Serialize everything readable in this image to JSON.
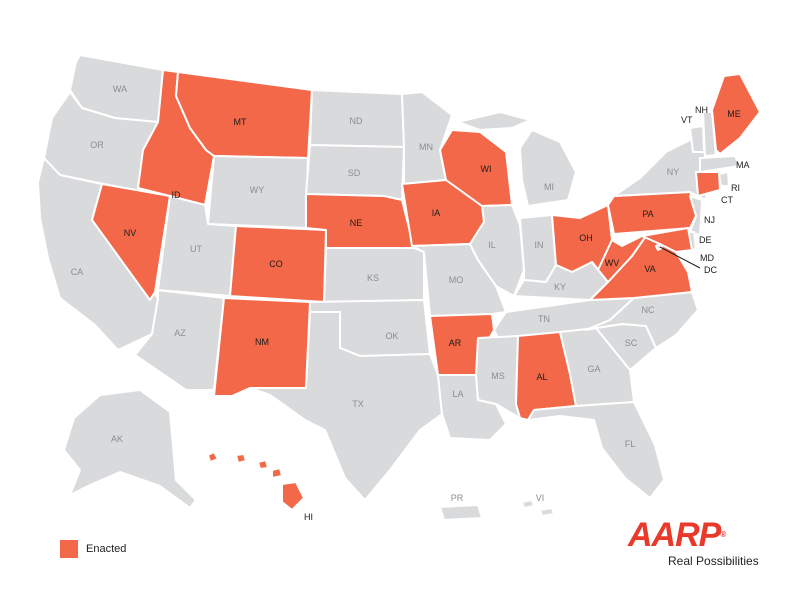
{
  "colors": {
    "enacted": "#f26849",
    "other": "#d9dadc",
    "border": "#ffffff",
    "label_other": "#8a8d91",
    "label_enacted": "#1d1d1d"
  },
  "legend": {
    "enacted_label": "Enacted"
  },
  "brand": {
    "logo": "AARP",
    "registered": "®",
    "tagline": "Real Possibilities"
  },
  "states": [
    {
      "code": "WA",
      "enacted": false
    },
    {
      "code": "OR",
      "enacted": false
    },
    {
      "code": "CA",
      "enacted": false
    },
    {
      "code": "NV",
      "enacted": true
    },
    {
      "code": "ID",
      "enacted": true
    },
    {
      "code": "MT",
      "enacted": true
    },
    {
      "code": "WY",
      "enacted": false
    },
    {
      "code": "UT",
      "enacted": false
    },
    {
      "code": "AZ",
      "enacted": false
    },
    {
      "code": "CO",
      "enacted": true
    },
    {
      "code": "NM",
      "enacted": true
    },
    {
      "code": "ND",
      "enacted": false
    },
    {
      "code": "SD",
      "enacted": false
    },
    {
      "code": "NE",
      "enacted": true
    },
    {
      "code": "KS",
      "enacted": false
    },
    {
      "code": "OK",
      "enacted": false
    },
    {
      "code": "TX",
      "enacted": false
    },
    {
      "code": "MN",
      "enacted": false
    },
    {
      "code": "IA",
      "enacted": true
    },
    {
      "code": "MO",
      "enacted": false
    },
    {
      "code": "AR",
      "enacted": true
    },
    {
      "code": "LA",
      "enacted": false
    },
    {
      "code": "WI",
      "enacted": true
    },
    {
      "code": "IL",
      "enacted": false
    },
    {
      "code": "MI",
      "enacted": false
    },
    {
      "code": "IN",
      "enacted": false
    },
    {
      "code": "OH",
      "enacted": true
    },
    {
      "code": "KY",
      "enacted": false
    },
    {
      "code": "TN",
      "enacted": false
    },
    {
      "code": "MS",
      "enacted": false
    },
    {
      "code": "AL",
      "enacted": true
    },
    {
      "code": "GA",
      "enacted": false
    },
    {
      "code": "FL",
      "enacted": false
    },
    {
      "code": "SC",
      "enacted": false
    },
    {
      "code": "NC",
      "enacted": false
    },
    {
      "code": "VA",
      "enacted": true
    },
    {
      "code": "WV",
      "enacted": true
    },
    {
      "code": "PA",
      "enacted": true
    },
    {
      "code": "NY",
      "enacted": false
    },
    {
      "code": "VT",
      "enacted": false
    },
    {
      "code": "NH",
      "enacted": false
    },
    {
      "code": "ME",
      "enacted": true
    },
    {
      "code": "MA",
      "enacted": false
    },
    {
      "code": "RI",
      "enacted": false
    },
    {
      "code": "CT",
      "enacted": true
    },
    {
      "code": "NJ",
      "enacted": false
    },
    {
      "code": "DE",
      "enacted": false
    },
    {
      "code": "MD",
      "enacted": true
    },
    {
      "code": "DC",
      "enacted": false
    },
    {
      "code": "AK",
      "enacted": false
    },
    {
      "code": "HI",
      "enacted": true
    },
    {
      "code": "PR",
      "enacted": false
    },
    {
      "code": "VI",
      "enacted": false
    }
  ]
}
